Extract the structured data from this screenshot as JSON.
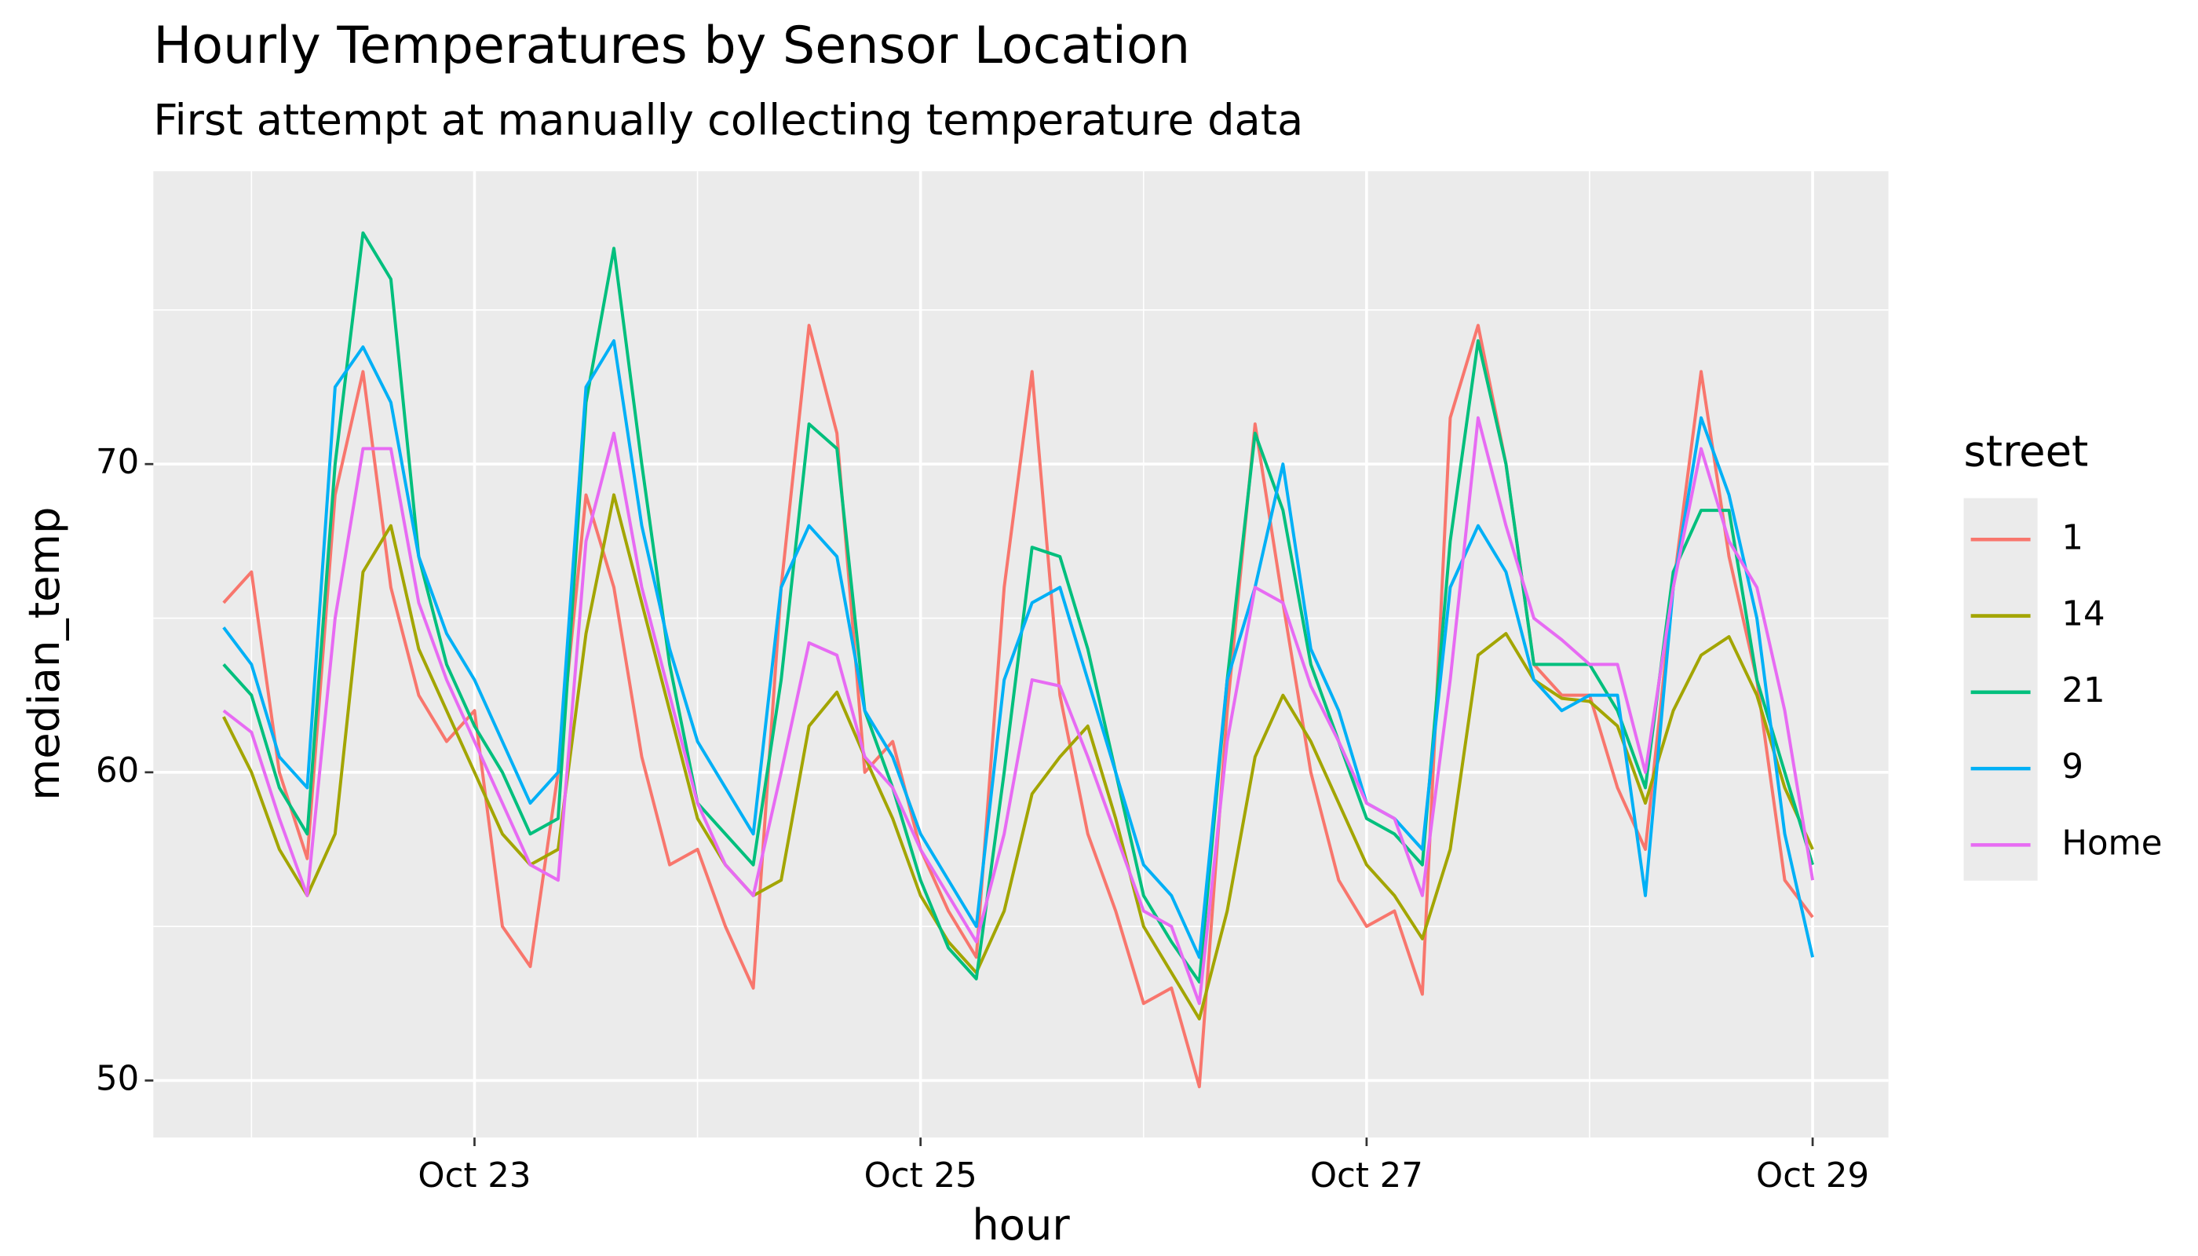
{
  "chart_data": {
    "type": "line",
    "title": "Hourly Temperatures by Sensor Location",
    "subtitle": "First attempt at manually collecting temperature data",
    "x_label": "hour",
    "y_label": "median_temp",
    "legend_title": "street",
    "legend": "right",
    "grid": true,
    "xlim": [
      21.56,
      29.34
    ],
    "ylim": [
      48.15,
      79.5
    ],
    "xticks": [
      {
        "value": 23,
        "label": "Oct 23"
      },
      {
        "value": 25,
        "label": "Oct 25"
      },
      {
        "value": 27,
        "label": "Oct 27"
      },
      {
        "value": 29,
        "label": "Oct 29"
      }
    ],
    "xminor": [
      22,
      24,
      26,
      28
    ],
    "yticks": [
      50,
      60,
      70
    ],
    "yminor": [
      55,
      65,
      75
    ],
    "x": [
      21.875,
      22,
      22.125,
      22.25,
      22.375,
      22.5,
      22.625,
      22.75,
      22.875,
      23,
      23.125,
      23.25,
      23.375,
      23.5,
      23.625,
      23.75,
      23.875,
      24,
      24.125,
      24.25,
      24.375,
      24.5,
      24.625,
      24.75,
      24.875,
      25,
      25.125,
      25.25,
      25.375,
      25.5,
      25.625,
      25.75,
      25.875,
      26,
      26.125,
      26.25,
      26.375,
      26.5,
      26.625,
      26.75,
      26.875,
      27,
      27.125,
      27.25,
      27.375,
      27.5,
      27.625,
      27.75,
      27.875,
      28,
      28.125,
      28.25,
      28.375,
      28.5,
      28.625,
      28.75,
      28.875,
      29
    ],
    "series": [
      {
        "name": "1",
        "color": "#F8766D",
        "values": [
          65.5,
          66.5,
          60,
          57.2,
          69,
          73,
          66,
          62.5,
          61,
          62,
          55,
          53.7,
          60,
          69,
          66,
          60.5,
          57,
          57.5,
          55,
          53,
          66,
          74.5,
          71,
          60,
          61,
          57.5,
          55.5,
          54,
          66,
          73,
          62.5,
          58,
          55.5,
          52.5,
          53,
          49.8,
          62,
          71.3,
          65.5,
          60,
          56.5,
          55,
          55.5,
          52.8,
          71.5,
          74.5,
          70,
          63.5,
          62.5,
          62.5,
          59.5,
          57.5,
          66,
          73,
          67,
          63,
          56.5,
          55.3
        ]
      },
      {
        "name": "14",
        "color": "#A3A500",
        "values": [
          61.8,
          60,
          57.5,
          56,
          58,
          66.5,
          68,
          64,
          62,
          60,
          58,
          57,
          57.5,
          64.5,
          69,
          65.5,
          62,
          58.5,
          57,
          56,
          56.5,
          61.5,
          62.6,
          60.5,
          58.5,
          56,
          54.5,
          53.5,
          55.5,
          59.3,
          60.5,
          61.5,
          58.5,
          55,
          53.5,
          52,
          55.5,
          60.5,
          62.5,
          61,
          59,
          57,
          56,
          54.6,
          57.5,
          63.8,
          64.5,
          63,
          62.4,
          62.3,
          61.5,
          59,
          62,
          63.8,
          64.4,
          62.5,
          59.5,
          57.5
        ]
      },
      {
        "name": "21",
        "color": "#00BF7D",
        "values": [
          63.5,
          62.5,
          59.5,
          58,
          70,
          77.5,
          76,
          67,
          63.5,
          61.5,
          60,
          58,
          58.5,
          72,
          77,
          70,
          63.5,
          59,
          58,
          57,
          63,
          71.3,
          70.5,
          62,
          59.5,
          56.5,
          54.3,
          53.3,
          60,
          67.3,
          67,
          64,
          60,
          56,
          54.5,
          53.2,
          63,
          71,
          68.5,
          63.5,
          61,
          58.5,
          58,
          57,
          67.5,
          74,
          70,
          63.5,
          63.5,
          63.5,
          62,
          59.5,
          66.5,
          68.5,
          68.5,
          63,
          60,
          57
        ]
      },
      {
        "name": "9",
        "color": "#00B0F6",
        "values": [
          64.7,
          63.5,
          60.5,
          59.5,
          72.5,
          73.8,
          72,
          67,
          64.5,
          63,
          61,
          59,
          60,
          72.5,
          74,
          68,
          64,
          61,
          59.5,
          58,
          66,
          68,
          67,
          62,
          60.5,
          58,
          56.5,
          55,
          63,
          65.5,
          66,
          63,
          60,
          57,
          56,
          54,
          63,
          66,
          70,
          64,
          62,
          59,
          58.5,
          57.5,
          66,
          68,
          66.5,
          63,
          62,
          62.5,
          62.5,
          56,
          66,
          71.5,
          69,
          65,
          58,
          54
        ]
      },
      {
        "name": "Home",
        "color": "#E76BF3",
        "values": [
          62,
          61.3,
          58.5,
          56,
          65,
          70.5,
          70.5,
          65.5,
          63,
          61,
          59,
          57,
          56.5,
          67.5,
          71,
          66,
          62.5,
          59,
          57,
          56,
          60,
          64.2,
          63.8,
          60.5,
          59.5,
          57.5,
          56,
          54.5,
          58,
          63,
          62.8,
          60.5,
          58,
          55.5,
          55,
          52.5,
          61,
          66,
          65.5,
          62.8,
          61,
          59,
          58.5,
          56,
          63,
          71.5,
          68,
          65,
          64.3,
          63.5,
          63.5,
          60,
          66,
          70.5,
          67.5,
          66,
          62,
          56.5
        ]
      }
    ]
  }
}
